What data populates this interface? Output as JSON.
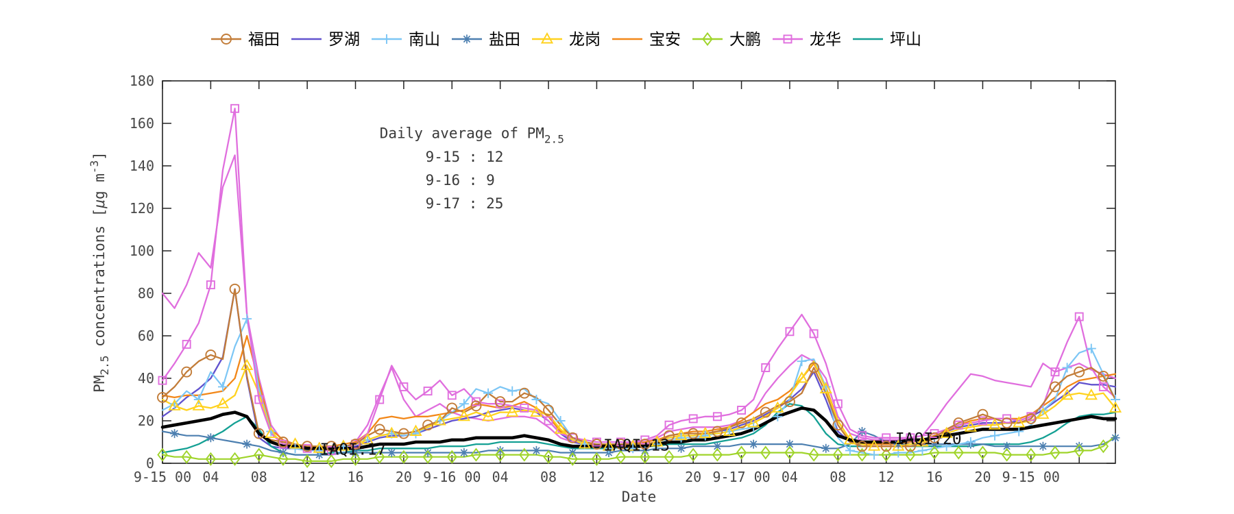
{
  "figure": {
    "background": "#ffffff",
    "axis_color": "#222222",
    "tick_text_color": "#474747"
  },
  "legend": {
    "items": [
      {
        "label": "福田",
        "color": "#C27C38",
        "marker": "circle"
      },
      {
        "label": "罗湖",
        "color": "#6152CE",
        "marker": "none"
      },
      {
        "label": "南山",
        "color": "#7CC6F5",
        "marker": "plus"
      },
      {
        "label": "盐田",
        "color": "#4C7FB0",
        "marker": "asterisk"
      },
      {
        "label": "龙岗",
        "color": "#FFD21E",
        "marker": "triangle"
      },
      {
        "label": "宝安",
        "color": "#F28718",
        "marker": "none"
      },
      {
        "label": "大鹏",
        "color": "#9FD42A",
        "marker": "diamond"
      },
      {
        "label": "龙华",
        "color": "#E06EDE",
        "marker": "square"
      },
      {
        "label": "坪山",
        "color": "#14A094",
        "marker": "none"
      }
    ]
  },
  "chart_data": {
    "type": "line",
    "xlabel": "Date",
    "ylabel": {
      "pm": "PM",
      "pm_sub": "2.5",
      "mid": " concentrations [",
      "mu": "μ",
      "units": "g m",
      "sup": "-3",
      "close": "]"
    },
    "ylim": [
      0,
      180
    ],
    "yticks": [
      0,
      20,
      40,
      60,
      80,
      100,
      120,
      140,
      160,
      180
    ],
    "x_total_hours": 79,
    "xticks": [
      {
        "hour": 0,
        "label": "9-15 00"
      },
      {
        "hour": 4,
        "label": "04"
      },
      {
        "hour": 8,
        "label": "08"
      },
      {
        "hour": 12,
        "label": "12"
      },
      {
        "hour": 16,
        "label": "16"
      },
      {
        "hour": 20,
        "label": "20"
      },
      {
        "hour": 24,
        "label": "9-16 00"
      },
      {
        "hour": 28,
        "label": "04"
      },
      {
        "hour": 32,
        "label": "08"
      },
      {
        "hour": 36,
        "label": "12"
      },
      {
        "hour": 40,
        "label": "16"
      },
      {
        "hour": 44,
        "label": "20"
      },
      {
        "hour": 48,
        "label": "9-17 00"
      },
      {
        "hour": 52,
        "label": "04"
      },
      {
        "hour": 56,
        "label": "08"
      },
      {
        "hour": 60,
        "label": "12"
      },
      {
        "hour": 64,
        "label": "16"
      },
      {
        "hour": 68,
        "label": "20"
      },
      {
        "hour": 72,
        "label": "9-15 00"
      },
      {
        "hour": 76,
        "label": ""
      }
    ],
    "annotation_title": {
      "text": "Daily average of PM",
      "subscript": "2.5",
      "hour": 18.0,
      "value": 153
    },
    "daily_averages": [
      {
        "text": "9-15 : 12",
        "hour": 21.8,
        "value": 142
      },
      {
        "text": "9-16 : 9",
        "hour": 21.8,
        "value": 131
      },
      {
        "text": "9-17 : 25",
        "hour": 21.8,
        "value": 120
      }
    ],
    "iaqi_annotations": [
      {
        "text": "IAQI:17",
        "hour": 15.8,
        "value": 4.0
      },
      {
        "text": "IAQI:13",
        "hour": 39.3,
        "value": 6.0
      },
      {
        "text": "IAQI:20",
        "hour": 63.5,
        "value": 9.0
      }
    ],
    "series": [
      {
        "key": "longhua-unmarked",
        "name": "龙华",
        "in_legend": false,
        "color": "#E06EDE",
        "marker": "none",
        "marker_every": 0,
        "width": 2.3,
        "values": [
          80,
          73,
          84,
          99,
          92,
          130,
          145,
          70,
          40,
          18,
          10,
          8,
          7,
          6,
          6,
          7,
          10,
          18,
          32,
          45,
          30,
          22,
          25,
          28,
          24,
          22,
          21,
          20,
          21,
          22,
          22,
          21,
          17,
          12,
          10,
          9,
          9,
          9,
          9,
          10,
          10,
          12,
          15,
          16,
          17,
          17,
          17,
          18,
          20,
          24,
          33,
          40,
          46,
          51,
          48,
          40,
          22,
          14,
          12,
          11,
          11,
          11,
          12,
          13,
          20,
          28,
          35,
          42,
          41,
          39,
          38,
          37,
          36,
          47,
          43,
          45,
          47,
          44,
          42,
          40
        ]
      },
      {
        "key": "luohu",
        "name": "罗湖",
        "in_legend": true,
        "color": "#6152CE",
        "marker": "none",
        "marker_every": 0,
        "width": 2.3,
        "values": [
          22,
          26,
          31,
          35,
          40,
          50,
          82,
          40,
          12,
          8,
          7,
          7,
          6,
          6,
          6,
          7,
          8,
          10,
          12,
          13,
          13,
          14,
          16,
          18,
          20,
          21,
          22,
          24,
          25,
          26,
          25,
          24,
          20,
          14,
          10,
          9,
          8,
          8,
          8,
          8,
          9,
          10,
          12,
          13,
          13,
          14,
          15,
          16,
          18,
          20,
          23,
          26,
          30,
          35,
          43,
          30,
          15,
          10,
          9,
          9,
          9,
          9,
          10,
          11,
          13,
          15,
          17,
          18,
          19,
          19,
          19,
          20,
          22,
          25,
          29,
          33,
          38,
          37,
          37,
          36
        ]
      },
      {
        "key": "baoan",
        "name": "宝安",
        "in_legend": true,
        "color": "#F28718",
        "marker": "none",
        "marker_every": 0,
        "width": 2.3,
        "values": [
          32,
          31,
          32,
          32,
          33,
          34,
          40,
          60,
          38,
          16,
          11,
          9,
          8,
          8,
          8,
          9,
          10,
          14,
          21,
          22,
          21,
          22,
          22,
          23,
          24,
          25,
          28,
          27,
          26,
          27,
          29,
          26,
          22,
          15,
          11,
          9,
          9,
          9,
          9,
          9,
          10,
          11,
          13,
          14,
          15,
          15,
          16,
          17,
          20,
          24,
          28,
          30,
          34,
          40,
          47,
          36,
          20,
          11,
          9,
          9,
          9,
          9,
          10,
          11,
          13,
          15,
          18,
          20,
          21,
          21,
          21,
          21,
          23,
          27,
          31,
          36,
          39,
          40,
          41,
          42
        ]
      },
      {
        "key": "pingshan",
        "name": "坪山",
        "in_legend": true,
        "color": "#14A094",
        "marker": "none",
        "marker_every": 0,
        "width": 2.3,
        "values": [
          5,
          6,
          7,
          9,
          12,
          15,
          19,
          22,
          16,
          8,
          5,
          4,
          4,
          4,
          5,
          5,
          6,
          6,
          7,
          7,
          7,
          7,
          7,
          8,
          8,
          8,
          9,
          9,
          10,
          10,
          10,
          10,
          9,
          8,
          7,
          7,
          7,
          7,
          7,
          8,
          8,
          8,
          9,
          9,
          9,
          9,
          10,
          11,
          12,
          14,
          18,
          24,
          28,
          27,
          22,
          14,
          9,
          8,
          8,
          8,
          8,
          8,
          8,
          8,
          8,
          8,
          8,
          8,
          9,
          9,
          9,
          9,
          10,
          12,
          15,
          19,
          22,
          23,
          23,
          24
        ]
      },
      {
        "key": "yantian",
        "name": "盐田",
        "in_legend": true,
        "color": "#4C7FB0",
        "marker": "asterisk",
        "marker_every": 3,
        "marker_start": 1,
        "width": 2.2,
        "values": [
          15,
          14,
          13,
          13,
          12,
          11,
          10,
          9,
          8,
          6,
          5,
          4,
          4,
          4,
          4,
          5,
          5,
          5,
          5,
          5,
          5,
          5,
          5,
          5,
          5,
          5,
          5,
          6,
          6,
          6,
          6,
          6,
          6,
          5,
          5,
          5,
          5,
          5,
          6,
          6,
          6,
          7,
          7,
          7,
          8,
          8,
          8,
          8,
          9,
          9,
          9,
          9,
          9,
          9,
          8,
          7,
          7,
          9,
          15,
          13,
          10,
          9,
          9,
          9,
          9,
          9,
          9,
          9,
          9,
          8,
          8,
          8,
          8,
          8,
          8,
          8,
          8,
          8,
          9,
          12
        ]
      },
      {
        "key": "nanshan",
        "name": "南山",
        "in_legend": true,
        "color": "#7CC6F5",
        "marker": "plus",
        "marker_every": 2,
        "marker_start": 1,
        "width": 2.2,
        "values": [
          25,
          28,
          34,
          30,
          43,
          36,
          55,
          68,
          35,
          15,
          9,
          7,
          6,
          6,
          7,
          8,
          9,
          11,
          13,
          14,
          13,
          14,
          17,
          20,
          24,
          28,
          35,
          33,
          36,
          34,
          35,
          30,
          28,
          20,
          12,
          9,
          8,
          7,
          7,
          7,
          8,
          9,
          11,
          12,
          12,
          13,
          14,
          15,
          16,
          17,
          19,
          22,
          30,
          48,
          49,
          36,
          12,
          6,
          5,
          4,
          4,
          5,
          5,
          6,
          7,
          8,
          9,
          10,
          12,
          13,
          14,
          15,
          18,
          25,
          30,
          45,
          52,
          54,
          42,
          30
        ]
      },
      {
        "key": "longgang",
        "name": "龙岗",
        "in_legend": true,
        "color": "#FFD21E",
        "marker": "triangle",
        "marker_every": 2,
        "marker_start": 1,
        "width": 2.3,
        "values": [
          30,
          27,
          25,
          27,
          26,
          28,
          32,
          46,
          33,
          14,
          10,
          9,
          8,
          7,
          7,
          8,
          9,
          11,
          13,
          14,
          14,
          15,
          17,
          20,
          21,
          22,
          24,
          22,
          24,
          24,
          25,
          24,
          23,
          16,
          11,
          9,
          8,
          8,
          8,
          8,
          9,
          10,
          12,
          13,
          13,
          14,
          14,
          15,
          17,
          19,
          22,
          26,
          32,
          40,
          48,
          35,
          20,
          11,
          9,
          8,
          8,
          8,
          9,
          10,
          12,
          14,
          16,
          17,
          18,
          18,
          19,
          19,
          20,
          23,
          27,
          32,
          33,
          32,
          33,
          26
        ]
      },
      {
        "key": "dapeng",
        "name": "大鹏",
        "in_legend": true,
        "color": "#9FD42A",
        "marker": "diamond",
        "marker_every": 2,
        "marker_start": 0,
        "width": 2.2,
        "values": [
          4,
          3,
          3,
          2,
          2,
          2,
          2,
          3,
          4,
          3,
          2,
          2,
          1,
          1,
          1,
          2,
          2,
          2,
          3,
          3,
          3,
          3,
          3,
          3,
          3,
          3,
          4,
          4,
          4,
          4,
          4,
          4,
          3,
          3,
          2,
          2,
          2,
          2,
          3,
          3,
          3,
          3,
          3,
          3,
          4,
          4,
          4,
          4,
          5,
          5,
          5,
          5,
          5,
          5,
          4,
          4,
          4,
          4,
          4,
          4,
          4,
          4,
          4,
          4,
          5,
          5,
          5,
          5,
          5,
          5,
          4,
          4,
          4,
          4,
          5,
          5,
          6,
          6,
          8,
          13
        ]
      },
      {
        "key": "longhua",
        "name": "龙华",
        "in_legend": true,
        "color": "#E06EDE",
        "marker": "square",
        "marker_every": 2,
        "marker_start": 0,
        "width": 2.3,
        "values": [
          39,
          47,
          56,
          66,
          84,
          138,
          167,
          70,
          30,
          14,
          9,
          8,
          7,
          6,
          6,
          7,
          9,
          14,
          30,
          46,
          36,
          30,
          34,
          39,
          32,
          35,
          29,
          28,
          28,
          27,
          26,
          25,
          20,
          14,
          12,
          11,
          10,
          10,
          10,
          10,
          11,
          13,
          18,
          20,
          21,
          22,
          22,
          23,
          25,
          30,
          45,
          54,
          62,
          70,
          61,
          47,
          28,
          16,
          13,
          12,
          12,
          12,
          12,
          13,
          14,
          16,
          18,
          19,
          20,
          21,
          21,
          20,
          22,
          27,
          43,
          57,
          69,
          45,
          36,
          31
        ]
      },
      {
        "key": "futian",
        "name": "福田",
        "in_legend": true,
        "color": "#C27C38",
        "marker": "circle",
        "marker_every": 2,
        "marker_start": 0,
        "width": 2.3,
        "values": [
          31,
          36,
          43,
          48,
          51,
          49,
          82,
          41,
          14,
          11,
          10,
          9,
          8,
          8,
          8,
          8,
          9,
          13,
          16,
          15,
          14,
          15,
          18,
          20,
          26,
          24,
          27,
          33,
          29,
          29,
          33,
          31,
          25,
          18,
          12,
          10,
          9,
          9,
          9,
          9,
          9,
          10,
          13,
          14,
          14,
          14,
          15,
          17,
          19,
          21,
          24,
          27,
          29,
          33,
          45,
          33,
          18,
          10,
          8,
          8,
          8,
          8,
          8,
          9,
          12,
          16,
          19,
          21,
          23,
          21,
          19,
          19,
          21,
          28,
          36,
          41,
          43,
          45,
          41,
          30
        ]
      },
      {
        "key": "average-black",
        "name": "平均(黑线)",
        "in_legend": false,
        "color": "#000000",
        "marker": "none",
        "marker_every": 0,
        "width": 4.6,
        "values": [
          17,
          18,
          19,
          20,
          21,
          23,
          24,
          22,
          14,
          10,
          8,
          8,
          7,
          7,
          7,
          7,
          7,
          8,
          9,
          9,
          9,
          10,
          10,
          10,
          11,
          11,
          12,
          12,
          12,
          12,
          13,
          12,
          11,
          9,
          8,
          8,
          8,
          8,
          8,
          8,
          8,
          9,
          10,
          10,
          11,
          11,
          12,
          13,
          14,
          16,
          19,
          22,
          24,
          26,
          25,
          20,
          13,
          11,
          10,
          10,
          10,
          10,
          11,
          11,
          12,
          13,
          14,
          15,
          16,
          16,
          16,
          16,
          17,
          18,
          19,
          20,
          21,
          22,
          21,
          21
        ]
      }
    ]
  }
}
